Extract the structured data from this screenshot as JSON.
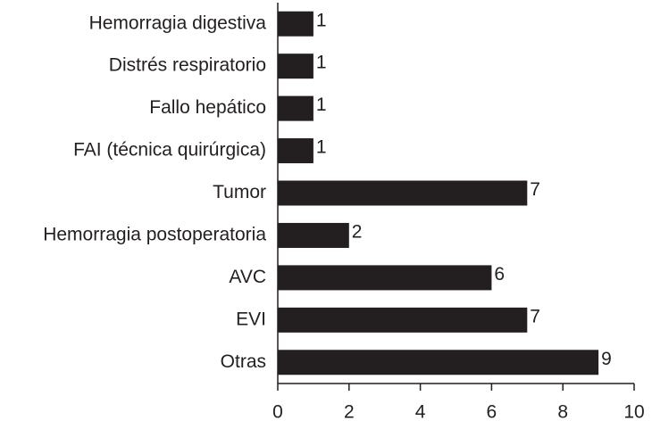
{
  "chart_data": {
    "type": "barh",
    "categories": [
      "Hemorragia digestiva",
      "Distrés respiratorio",
      "Fallo hepático",
      "FAI (técnica quirúrgica)",
      "Tumor",
      "Hemorragia postoperatoria",
      "AVC",
      "EVI",
      "Otras"
    ],
    "values": [
      1,
      1,
      1,
      1,
      7,
      2,
      6,
      7,
      9
    ],
    "color": "#231f20",
    "xlim": [
      0,
      10
    ],
    "xticks": [
      0,
      2,
      4,
      6,
      8,
      10
    ]
  }
}
